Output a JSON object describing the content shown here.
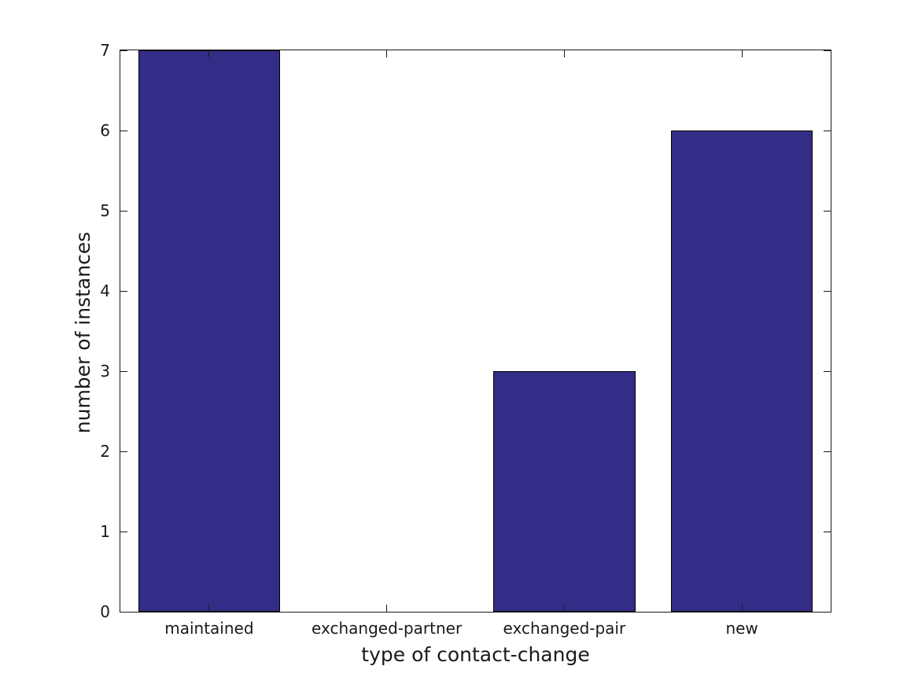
{
  "figure": {
    "background": "#ffffff"
  },
  "chart_data": {
    "type": "bar",
    "categories": [
      "maintained",
      "exchanged-partner",
      "exchanged-pair",
      "new"
    ],
    "values": [
      7,
      0,
      3,
      6
    ],
    "title": "",
    "xlabel": "type of contact-change",
    "ylabel": "number of instances",
    "ylim": [
      0,
      7
    ],
    "yticks": [
      0,
      1,
      2,
      3,
      4,
      5,
      6,
      7
    ],
    "bar_width_fraction": 0.8,
    "bar_color": "#342d87",
    "bar_edge_color": "#000000",
    "axis_color": "#1a1a1a",
    "text_color": "#1a1a1a",
    "grid": false,
    "legend": null,
    "tick_direction": "in",
    "ticks_on_all_sides": true
  }
}
